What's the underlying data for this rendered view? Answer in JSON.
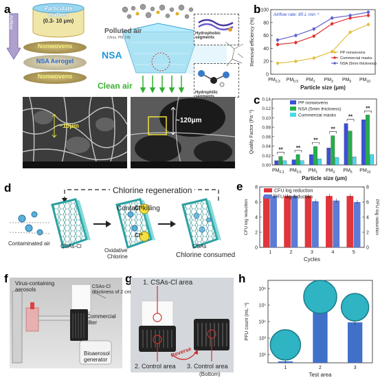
{
  "panel_letters": {
    "a": "a",
    "b": "b",
    "c": "c",
    "d": "d",
    "e": "e",
    "f": "f",
    "g": "g",
    "h": "h"
  },
  "panel_a": {
    "cylinder_text_1": "Particulate",
    "cylinder_text_2": "matters",
    "cylinder_text_3": "(0.3- 10 μm)",
    "airflow": "Airflow",
    "layer_top": "Nonwovens",
    "layer_mid": "NSA Aerogel",
    "layer_bot": "Nonwovens",
    "polluted_air": "Polluted air",
    "polluted_sub": "(Virus, PM, Oil)",
    "nsa": "NSA",
    "clean_air": "Clean air",
    "hydrophobic": "Hydrophobic segments",
    "hydrophilic": "Hydrophilic segments",
    "sem_scale_1": "~10μm",
    "sem_scale_2": "~120μm"
  },
  "chart_b": {
    "type": "line",
    "annotation": "Airflow rate: 85 L min⁻¹",
    "ylabel": "Removal efficiency (%)",
    "xlabel": "Particle size (μm)",
    "ylim": [
      0,
      100
    ],
    "yticks": [
      "0",
      "20",
      "40",
      "60",
      "80",
      "100"
    ],
    "categories": [
      "PM 0.3",
      "PM 0.5",
      "PM 1",
      "PM 3",
      "PM 5",
      "PM 10"
    ],
    "series": [
      {
        "name": "PP nonwovens",
        "color": "#e0c040",
        "values": [
          17,
          20,
          25,
          35,
          65,
          77
        ]
      },
      {
        "name": "Commercial masks",
        "color": "#e03030",
        "values": [
          46,
          49,
          59,
          78,
          87,
          91
        ]
      },
      {
        "name": "NSA (5mm thickness)",
        "color": "#6060d0",
        "values": [
          53,
          60,
          70,
          87,
          91,
          96
        ]
      }
    ]
  },
  "chart_c": {
    "type": "bar",
    "ylabel": "Quality Factor (Pa⁻¹)",
    "xlabel": "Particle size (μm)",
    "ylim": [
      0,
      0.14
    ],
    "yticks": [
      "0.00",
      "0.02",
      "0.04",
      "0.06",
      "0.08",
      "0.10",
      "0.12",
      "0.14"
    ],
    "categories": [
      "PM 0.3",
      "PM 0.5",
      "PM 1",
      "PM 3",
      "PM 5",
      "PM 10"
    ],
    "significance": "**",
    "series": [
      {
        "name": "PP nonwovens",
        "color": "#3a50d8",
        "values": [
          0.009,
          0.011,
          0.022,
          0.036,
          0.088,
          0.096
        ]
      },
      {
        "name": "NSA (5mm thickness)",
        "color": "#22b04a",
        "values": [
          0.018,
          0.022,
          0.039,
          0.062,
          0.072,
          0.106
        ]
      },
      {
        "name": "Commercial masks",
        "color": "#4cd8ec",
        "values": [
          0.009,
          0.009,
          0.013,
          0.016,
          0.017,
          0.022
        ]
      }
    ]
  },
  "panel_d": {
    "regeneration": "Chlorine regeneration",
    "contaminated": "Contaminated air",
    "csas_cl": "CSAs-Cl",
    "contact_killing": "Contact-killing",
    "oxidative": "Oxidative",
    "chlorine": "Chlorine",
    "csas": "CSAs",
    "consumed": "Chlorine consumed",
    "cl_plus": "Cl⁺"
  },
  "chart_e": {
    "type": "bar",
    "ylabel_left": "CFU log reduction",
    "ylabel_right": "PFU log reduction",
    "xlabel": "Cycles",
    "ylim": [
      0,
      8
    ],
    "yticks": [
      "0",
      "2",
      "4",
      "6",
      "8"
    ],
    "categories": [
      "1",
      "2",
      "3",
      "4",
      "5"
    ],
    "series": [
      {
        "name": "CFU log reduction",
        "color": "#e0353b",
        "values": [
          6.8,
          6.8,
          6.8,
          6.8,
          6.8
        ]
      },
      {
        "name": "PFU log reduction",
        "color": "#5b7bd5",
        "values": [
          6.8,
          6.8,
          6.1,
          6.2,
          6.0
        ]
      }
    ]
  },
  "panel_f": {
    "virus_aerosols": "Virus-containing aerosols",
    "csas_label_1": "CSAs-Cl",
    "csas_label_2": "(thickness of 2 cm)",
    "commercial": "Commercial",
    "filter": "filter",
    "bioaerosol_1": "Bioaerosol",
    "bioaerosol_2": "generator"
  },
  "panel_g": {
    "area1": "1. CSAs-Cl area",
    "area2": "2. Control area",
    "area3": "3. Control area",
    "bottom": "(Bottom)",
    "reverse": "Reverse"
  },
  "chart_h": {
    "type": "bar",
    "ylabel": "PFU count (mL⁻¹)",
    "xlabel": "Test area",
    "yticks": [
      "10¹",
      "10³",
      "10⁵",
      "10⁷",
      "10⁹"
    ],
    "categories": [
      "1",
      "2",
      "3"
    ],
    "values": [
      1.5,
      3000000.0,
      80000.0
    ],
    "color": "#4070c8"
  }
}
